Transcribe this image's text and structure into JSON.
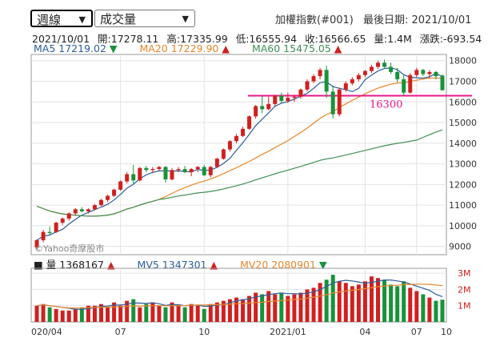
{
  "controls": {
    "period_selected": "週線",
    "indicator_selected": "成交量"
  },
  "header": {
    "index_name": "加權指數(#001)",
    "last_date_label": "最後日期: 2021/10/01"
  },
  "ohlc": {
    "date": "2021/10/01",
    "open": "開:17278.11",
    "high": "高:17335.99",
    "low": "低:16555.94",
    "close": "收:16566.65",
    "volume": "量:1.4M",
    "change": "漲跌:-693.54"
  },
  "ma_legend": {
    "ma5": "MA5 17219.02",
    "ma20": "MA20 17229.90",
    "ma60": "MA60 15475.05"
  },
  "volume_legend": {
    "vol": "量 1368167",
    "mv5": "MV5 1347301",
    "mv20": "MV20 2080901"
  },
  "watermark": "©Yahoo奇摩股市",
  "colors": {
    "up": "#d02020",
    "down": "#19923a",
    "ma5": "#2b5d9b",
    "ma20": "#e8862a",
    "ma60": "#3f8f57",
    "ref_line": "#e8178a"
  },
  "chart_data": [
    {
      "type": "line",
      "subtype": "candlestick-weekly",
      "x_ticks": [
        "020/04",
        "07",
        "10",
        "2021/01",
        "04",
        "07",
        "10"
      ],
      "ylim": [
        8600,
        18300
      ],
      "yticks": [
        "9000",
        "10000",
        "11000",
        "12000",
        "13000",
        "14000",
        "15000",
        "16000",
        "17000",
        "18000"
      ],
      "candles": [
        [
          8950,
          9350,
          8850,
          9300
        ],
        [
          9300,
          9800,
          9200,
          9700
        ],
        [
          9700,
          9950,
          9550,
          9650
        ],
        [
          9700,
          10200,
          9650,
          10150
        ],
        [
          10150,
          10400,
          10050,
          10350
        ],
        [
          10350,
          10650,
          10250,
          10600
        ],
        [
          10600,
          10850,
          10500,
          10800
        ],
        [
          10800,
          10900,
          10650,
          10700
        ],
        [
          10700,
          10850,
          10600,
          10800
        ],
        [
          10800,
          11050,
          10750,
          11000
        ],
        [
          11000,
          11300,
          10950,
          11250
        ],
        [
          11250,
          11500,
          11150,
          11450
        ],
        [
          11450,
          11800,
          11400,
          11750
        ],
        [
          11750,
          12200,
          11700,
          12150
        ],
        [
          12150,
          12600,
          12050,
          12500
        ],
        [
          12500,
          12950,
          12050,
          12200
        ],
        [
          12200,
          12850,
          12150,
          12800
        ],
        [
          12800,
          12900,
          12600,
          12700
        ],
        [
          12700,
          12850,
          12550,
          12750
        ],
        [
          12750,
          12900,
          12650,
          12850
        ],
        [
          12850,
          12900,
          12100,
          12250
        ],
        [
          12250,
          12800,
          12200,
          12700
        ],
        [
          12700,
          12850,
          12600,
          12750
        ],
        [
          12750,
          12900,
          12550,
          12600
        ],
        [
          12600,
          12800,
          12400,
          12750
        ],
        [
          12750,
          12900,
          12600,
          12850
        ],
        [
          12850,
          12950,
          12400,
          12450
        ],
        [
          12450,
          12900,
          12350,
          12850
        ],
        [
          12850,
          13300,
          12800,
          13250
        ],
        [
          13250,
          13750,
          13200,
          13700
        ],
        [
          13700,
          14150,
          13600,
          14100
        ],
        [
          14100,
          14450,
          14000,
          14350
        ],
        [
          14350,
          14800,
          14300,
          14700
        ],
        [
          14700,
          15350,
          14650,
          15300
        ],
        [
          15300,
          15850,
          15200,
          15800
        ],
        [
          15800,
          16300,
          15450,
          15650
        ],
        [
          15650,
          16250,
          15600,
          15900
        ],
        [
          15900,
          16350,
          15800,
          16300
        ],
        [
          16300,
          16450,
          15950,
          16050
        ],
        [
          16050,
          16450,
          15950,
          16200
        ],
        [
          16200,
          16350,
          16000,
          16250
        ],
        [
          16250,
          16650,
          16150,
          16600
        ],
        [
          16600,
          17100,
          16500,
          17000
        ],
        [
          17000,
          17350,
          16900,
          17250
        ],
        [
          17250,
          17650,
          17100,
          17550
        ],
        [
          17550,
          17750,
          16200,
          16500
        ],
        [
          16500,
          16800,
          15200,
          15400
        ],
        [
          15400,
          16700,
          15300,
          16600
        ],
        [
          16600,
          17000,
          16500,
          16900
        ],
        [
          16900,
          17200,
          16800,
          17100
        ],
        [
          17100,
          17400,
          17000,
          17300
        ],
        [
          17300,
          17550,
          17200,
          17500
        ],
        [
          17500,
          17800,
          17400,
          17700
        ],
        [
          17700,
          18000,
          17600,
          17900
        ],
        [
          17900,
          18050,
          17650,
          17700
        ],
        [
          17700,
          17900,
          17350,
          17450
        ],
        [
          17450,
          17650,
          16950,
          17100
        ],
        [
          17100,
          17300,
          16300,
          16450
        ],
        [
          16450,
          17400,
          16400,
          17300
        ],
        [
          17300,
          17650,
          17200,
          17550
        ],
        [
          17550,
          17600,
          17250,
          17350
        ],
        [
          17350,
          17550,
          17150,
          17450
        ],
        [
          17450,
          17500,
          17100,
          17250
        ],
        [
          17278.11,
          17335.99,
          16555.94,
          16566.65
        ]
      ],
      "ma5_anchor": 17219.02,
      "ma20_anchor": 17229.9,
      "ma60_anchor": 15475.05,
      "reference_line": {
        "value": 16300,
        "label": "16300"
      }
    },
    {
      "type": "bar",
      "subtype": "volume",
      "yticks": [
        "1M",
        "2M",
        "3M"
      ],
      "ylim": [
        0,
        3.3
      ],
      "values": [
        1.0,
        1.1,
        0.9,
        0.8,
        0.7,
        0.7,
        0.8,
        0.9,
        1.0,
        1.0,
        1.1,
        0.9,
        1.2,
        1.0,
        1.3,
        1.4,
        0.9,
        1.1,
        1.2,
        1.0,
        0.9,
        1.2,
        1.0,
        0.9,
        1.1,
        1.0,
        0.8,
        1.1,
        1.2,
        1.3,
        1.4,
        1.5,
        1.4,
        1.6,
        1.8,
        1.7,
        1.9,
        1.7,
        1.8,
        1.6,
        1.7,
        1.8,
        2.0,
        2.1,
        2.4,
        2.6,
        2.9,
        2.5,
        2.4,
        2.2,
        2.3,
        2.5,
        2.8,
        2.7,
        2.6,
        2.3,
        2.2,
        2.5,
        2.1,
        1.9,
        1.7,
        1.5,
        1.3,
        1.37
      ],
      "mv5_anchor": 1347301,
      "mv20_anchor": 2080901
    }
  ]
}
